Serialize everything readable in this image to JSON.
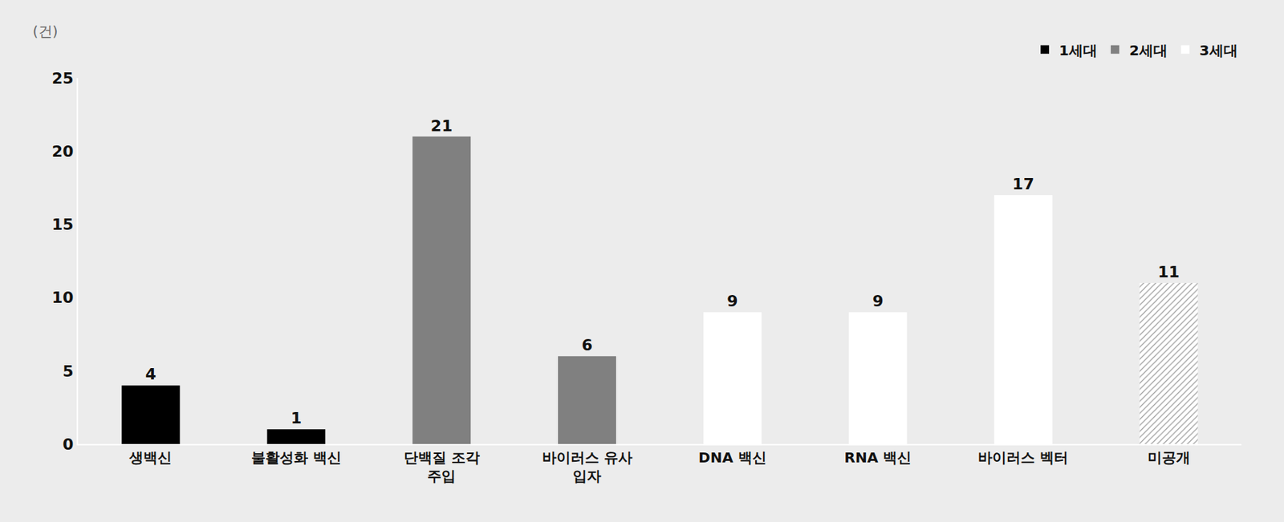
{
  "chart_data": {
    "type": "bar",
    "y_label": "(건)",
    "categories": [
      "생백신",
      "불활성화 백신",
      "단백질 조각 주입",
      "바이러스 유사 입자",
      "DNA 백신",
      "RNA 백신",
      "바이러스 벡터",
      "미공개"
    ],
    "series": [
      {
        "name": "1세대",
        "color": "#000000",
        "values": [
          4,
          1,
          null,
          null,
          null,
          null,
          null,
          null
        ]
      },
      {
        "name": "2세대",
        "color": "#808080",
        "values": [
          null,
          null,
          21,
          6,
          null,
          null,
          null,
          null
        ]
      },
      {
        "name": "3세대",
        "color": "#ffffff",
        "values": [
          null,
          null,
          null,
          null,
          9,
          9,
          17,
          null
        ]
      },
      {
        "color": "#ffffff",
        "marker": "hatch",
        "values": [
          null,
          null,
          null,
          null,
          null,
          null,
          null,
          11
        ]
      }
    ],
    "ylim": [
      0,
      25
    ],
    "yticks": [
      0,
      5,
      10,
      15,
      20,
      25
    ],
    "grid": false,
    "data_labels": true,
    "legend": "top right"
  }
}
